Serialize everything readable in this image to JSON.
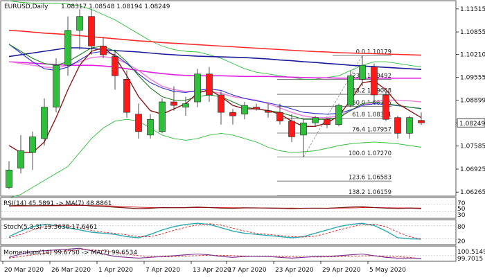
{
  "header": {
    "symbol": "EURUSD,Daily",
    "ohlc": "1.08317 1.08548 1.08194 1.08249"
  },
  "price_axis": {
    "ticks": [
      "1.11515",
      "1.10855",
      "1.10210",
      "1.09555",
      "1.08899",
      "1.08249",
      "1.07585",
      "1.06925",
      "1.06265"
    ],
    "current_price": "1.08249"
  },
  "colors": {
    "bull": "#2fbf3a",
    "bear": "#ff1a1a",
    "ema_red": "#ff2b2b",
    "ma_blue": "#1a1a9a",
    "ma_magenta": "#e020e0",
    "ma_pink": "#ee88dd",
    "band_green": "#2fbf3a",
    "fast_green": "#1f7f1f",
    "fast_brown": "#8b1a1a",
    "fast_blue": "#2b2bd6"
  },
  "date_ticks": [
    "20 Mar 2020",
    "26 Mar 2020",
    "1 Apr 2020",
    "7 Apr 2020",
    "13 Apr 2020",
    "17 Apr 2020",
    "23 Apr 2020",
    "29 Apr 2020",
    "5 May 2020"
  ],
  "fib_levels": [
    {
      "label": "0.0 1.10179",
      "value": 1.10179
    },
    {
      "label": "23.6 1.09492",
      "value": 1.09492
    },
    {
      "label": "38.2 1.09068",
      "value": 1.09068
    },
    {
      "label": "50.0 1.08725",
      "value": 1.08725
    },
    {
      "label": "61.8 1.08381",
      "value": 1.08381
    },
    {
      "label": "76.4 1.07957",
      "value": 1.07957
    },
    {
      "label": "100.0 1.07270",
      "value": 1.0727
    },
    {
      "label": "123.6 1.06583",
      "value": 1.06583
    },
    {
      "label": "138.2 1.06159",
      "value": 1.06159
    }
  ],
  "indicators": {
    "rsi": {
      "label": "RSI(14) 45.5891 -> MA(7) 48.8861",
      "ticks": [
        "70",
        "50",
        "30"
      ]
    },
    "stoch": {
      "label": "Stoch(5,3,3) 19.3630 17.6461",
      "ticks": [
        "80",
        "20"
      ]
    },
    "momentum": {
      "label": "Momentum(14) 99.6750 -> MA(7) 99.6534",
      "ticks": [
        "100.5149",
        "99.7015"
      ]
    }
  },
  "chart_data": {
    "type": "candlestick",
    "ylim": [
      1.0615,
      1.1175
    ],
    "candles": [
      {
        "o": 1.064,
        "h": 1.0715,
        "l": 1.0635,
        "c": 1.069
      },
      {
        "o": 1.0695,
        "h": 1.079,
        "l": 1.068,
        "c": 1.0745
      },
      {
        "o": 1.074,
        "h": 1.08,
        "l": 1.069,
        "c": 1.0785
      },
      {
        "o": 1.078,
        "h": 1.0895,
        "l": 1.076,
        "c": 1.087
      },
      {
        "o": 1.087,
        "h": 1.101,
        "l": 1.0855,
        "c": 1.099
      },
      {
        "o": 1.099,
        "h": 1.113,
        "l": 1.096,
        "c": 1.109
      },
      {
        "o": 1.109,
        "h": 1.115,
        "l": 1.1035,
        "c": 1.113
      },
      {
        "o": 1.113,
        "h": 1.115,
        "l": 1.102,
        "c": 1.1045
      },
      {
        "o": 1.1045,
        "h": 1.107,
        "l": 1.101,
        "c": 1.102
      },
      {
        "o": 1.1015,
        "h": 1.1035,
        "l": 1.092,
        "c": 1.096
      },
      {
        "o": 1.095,
        "h": 1.0975,
        "l": 1.084,
        "c": 1.0855
      },
      {
        "o": 1.085,
        "h": 1.088,
        "l": 1.078,
        "c": 1.08
      },
      {
        "o": 1.079,
        "h": 1.085,
        "l": 1.078,
        "c": 1.0835
      },
      {
        "o": 1.08,
        "h": 1.0895,
        "l": 1.0795,
        "c": 1.0885
      },
      {
        "o": 1.0885,
        "h": 1.093,
        "l": 1.086,
        "c": 1.0875
      },
      {
        "o": 1.087,
        "h": 1.09,
        "l": 1.0845,
        "c": 1.088
      },
      {
        "o": 1.0885,
        "h": 1.098,
        "l": 1.087,
        "c": 1.0965
      },
      {
        "o": 1.0965,
        "h": 1.0985,
        "l": 1.0885,
        "c": 1.0905
      },
      {
        "o": 1.0905,
        "h": 1.0915,
        "l": 1.082,
        "c": 1.0855
      },
      {
        "o": 1.0855,
        "h": 1.0865,
        "l": 1.082,
        "c": 1.0845
      },
      {
        "o": 1.085,
        "h": 1.0885,
        "l": 1.0835,
        "c": 1.0875
      },
      {
        "o": 1.087,
        "h": 1.088,
        "l": 1.086,
        "c": 1.0865
      },
      {
        "o": 1.086,
        "h": 1.088,
        "l": 1.084,
        "c": 1.0855
      },
      {
        "o": 1.0855,
        "h": 1.088,
        "l": 1.082,
        "c": 1.083
      },
      {
        "o": 1.083,
        "h": 1.085,
        "l": 1.077,
        "c": 1.0785
      },
      {
        "o": 1.079,
        "h": 1.0835,
        "l": 1.0727,
        "c": 1.0825
      },
      {
        "o": 1.0825,
        "h": 1.0845,
        "l": 1.0815,
        "c": 1.084
      },
      {
        "o": 1.0835,
        "h": 1.084,
        "l": 1.081,
        "c": 1.082
      },
      {
        "o": 1.082,
        "h": 1.088,
        "l": 1.0815,
        "c": 1.0875
      },
      {
        "o": 1.0875,
        "h": 1.0975,
        "l": 1.087,
        "c": 1.096
      },
      {
        "o": 1.095,
        "h": 1.1018,
        "l": 1.093,
        "c": 1.099
      },
      {
        "o": 1.0985,
        "h": 1.0995,
        "l": 1.088,
        "c": 1.0905
      },
      {
        "o": 1.0905,
        "h": 1.0915,
        "l": 1.083,
        "c": 1.0835
      },
      {
        "o": 1.084,
        "h": 1.0845,
        "l": 1.078,
        "c": 1.0795
      },
      {
        "o": 1.0795,
        "h": 1.0845,
        "l": 1.078,
        "c": 1.084
      },
      {
        "o": 1.0832,
        "h": 1.0855,
        "l": 1.0819,
        "c": 1.0825
      }
    ],
    "ema_red": [
      1.109,
      1.1088,
      1.1085,
      1.1082,
      1.108,
      1.1078,
      1.1075,
      1.1072,
      1.1069,
      1.1066,
      1.1063,
      1.106,
      1.1058,
      1.1055,
      1.1053,
      1.1051,
      1.1049,
      1.1047,
      1.1045,
      1.1043,
      1.1041,
      1.1039,
      1.1037,
      1.1035,
      1.1033,
      1.1031,
      1.1029,
      1.1028,
      1.1026,
      1.1025,
      1.1024,
      1.1023,
      1.1022,
      1.1021,
      1.102,
      1.1019
    ],
    "ma_blue": [
      1.1015,
      1.102,
      1.1025,
      1.103,
      1.1035,
      1.104,
      1.104,
      1.1038,
      1.1035,
      1.1032,
      1.103,
      1.1028,
      1.1025,
      1.1022,
      1.102,
      1.1018,
      1.1016,
      1.1015,
      1.1014,
      1.1013,
      1.1012,
      1.101,
      1.1008,
      1.1005,
      1.1003,
      1.1,
      1.0998,
      1.0995,
      1.0993,
      1.099,
      1.0988,
      1.0986,
      1.0984,
      1.0982,
      1.098,
      1.0978
    ],
    "ma_magenta": [
      1.1,
      1.0998,
      1.0996,
      1.0994,
      1.0992,
      1.099,
      1.099,
      1.099,
      1.0988,
      1.0985,
      1.098,
      1.0975,
      1.097,
      1.0966,
      1.0963,
      1.0961,
      1.096,
      1.096,
      1.096,
      1.0959,
      1.0958,
      1.0958,
      1.0958,
      1.0957,
      1.0956,
      1.0955,
      1.0954,
      1.0954,
      1.0953,
      1.0953,
      1.0953,
      1.0953,
      1.0953,
      1.0953,
      1.0953,
      1.0953
    ],
    "ma_pink": [
      1.1,
      1.0995,
      1.099,
      1.0985,
      1.0982,
      1.099,
      1.1,
      1.1012,
      1.1015,
      1.101,
      1.0995,
      1.0975,
      1.095,
      1.093,
      1.092,
      1.0915,
      1.0915,
      1.0915,
      1.091,
      1.09,
      1.0895,
      1.089,
      1.088,
      1.0868,
      1.0855,
      1.0845,
      1.084,
      1.084,
      1.0845,
      1.086,
      1.0875,
      1.0885,
      1.089,
      1.089,
      1.0888,
      1.0885
    ],
    "bb_upper": [
      1.1175,
      1.117,
      1.1168,
      1.1167,
      1.1168,
      1.1165,
      1.116,
      1.115,
      1.1135,
      1.112,
      1.11,
      1.108,
      1.106,
      1.1045,
      1.1035,
      1.103,
      1.1028,
      1.102,
      1.101,
      1.0995,
      1.098,
      1.097,
      1.0965,
      1.096,
      1.0955,
      1.095,
      1.095,
      1.0955,
      1.096,
      1.0975,
      1.099,
      1.1,
      1.1,
      1.0995,
      1.099,
      1.0985
    ],
    "bb_lower": [
      1.061,
      1.062,
      1.064,
      1.066,
      1.068,
      1.07,
      1.074,
      1.078,
      1.081,
      1.083,
      1.0835,
      1.083,
      1.081,
      1.079,
      1.078,
      1.0775,
      1.078,
      1.079,
      1.0795,
      1.079,
      1.078,
      1.077,
      1.0755,
      1.0745,
      1.074,
      1.0742,
      1.0745,
      1.0752,
      1.076,
      1.0765,
      1.0768,
      1.077,
      1.0768,
      1.0765,
      1.076,
      1.0755
    ],
    "fast_green": [
      1.105,
      1.103,
      1.101,
      1.0995,
      1.099,
      1.1,
      1.102,
      1.104,
      1.1045,
      1.103,
      1.1,
      1.096,
      1.0925,
      1.09,
      1.089,
      1.089,
      1.09,
      1.0905,
      1.09,
      1.0885,
      1.087,
      1.0865,
      1.086,
      1.0855,
      1.0845,
      1.0835,
      1.0835,
      1.0835,
      1.084,
      1.086,
      1.088,
      1.0885,
      1.088,
      1.0875,
      1.087,
      1.0865
    ],
    "fast_brown": [
      1.076,
      1.074,
      1.074,
      1.077,
      1.084,
      1.092,
      1.099,
      1.103,
      1.104,
      1.1015,
      1.096,
      1.09,
      1.086,
      1.085,
      1.0865,
      1.088,
      1.091,
      1.092,
      1.09,
      1.0875,
      1.0865,
      1.0865,
      1.086,
      1.085,
      1.083,
      1.0815,
      1.0815,
      1.0825,
      1.0845,
      1.089,
      1.094,
      1.0945,
      1.092,
      1.088,
      1.086,
      1.084
    ],
    "fast_blue": [
      1.105,
      1.1025,
      1.1,
      1.098,
      1.0975,
      1.0985,
      1.1005,
      1.1025,
      1.103,
      1.102,
      1.0995,
      1.0965,
      1.094,
      1.0925,
      1.0915,
      1.0912,
      1.0918,
      1.0922,
      1.0918,
      1.0905,
      1.0895,
      1.0888,
      1.0882,
      1.0875,
      1.0865,
      1.0855,
      1.0852,
      1.085,
      1.0852,
      1.0862,
      1.0875,
      1.088,
      1.0878,
      1.0874,
      1.087,
      1.0866
    ],
    "rsi": [
      62,
      63,
      62,
      63,
      64,
      66,
      66,
      61,
      59,
      54,
      50,
      46,
      48,
      52,
      51,
      52,
      55,
      52,
      49,
      48,
      50,
      50,
      49,
      48,
      46,
      48,
      49,
      48,
      51,
      55,
      57,
      52,
      49,
      47,
      49,
      46
    ],
    "rsi_ma": [
      60,
      61,
      61,
      62,
      62,
      63,
      64,
      63,
      62,
      60,
      57,
      54,
      52,
      51,
      51,
      51,
      52,
      52,
      52,
      51,
      51,
      50,
      50,
      49,
      49,
      48,
      48,
      48,
      49,
      50,
      52,
      52,
      51,
      50,
      50,
      49
    ],
    "stoch_k": [
      30,
      55,
      75,
      85,
      80,
      70,
      60,
      50,
      45,
      40,
      30,
      25,
      40,
      60,
      75,
      85,
      90,
      85,
      70,
      55,
      45,
      40,
      35,
      30,
      25,
      30,
      45,
      60,
      75,
      85,
      90,
      80,
      55,
      25,
      20,
      19
    ],
    "stoch_d": [
      25,
      40,
      60,
      75,
      80,
      78,
      70,
      58,
      50,
      45,
      38,
      30,
      30,
      42,
      58,
      72,
      83,
      88,
      82,
      68,
      55,
      45,
      40,
      35,
      30,
      28,
      32,
      45,
      60,
      73,
      84,
      86,
      75,
      50,
      30,
      18
    ],
    "momentum": [
      99.8,
      100.2,
      100.5,
      100.6,
      100.7,
      100.8,
      100.9,
      100.6,
      100.2,
      99.9,
      99.8,
      99.7,
      99.8,
      99.9,
      100.0,
      100.1,
      100.2,
      100.1,
      99.9,
      99.8,
      99.9,
      99.9,
      99.9,
      99.8,
      99.7,
      99.8,
      99.9,
      99.9,
      100.0,
      100.1,
      100.2,
      100.0,
      99.8,
      99.7,
      99.7,
      99.68
    ],
    "momentum_ma": [
      99.7,
      99.9,
      100.1,
      100.3,
      100.5,
      100.6,
      100.7,
      100.7,
      100.6,
      100.4,
      100.2,
      100.0,
      99.9,
      99.85,
      99.9,
      99.95,
      100.0,
      100.05,
      100.05,
      100.0,
      99.95,
      99.9,
      99.88,
      99.87,
      99.85,
      99.84,
      99.84,
      99.85,
      99.88,
      99.92,
      99.97,
      99.98,
      99.95,
      99.88,
      99.8,
      99.65
    ]
  }
}
